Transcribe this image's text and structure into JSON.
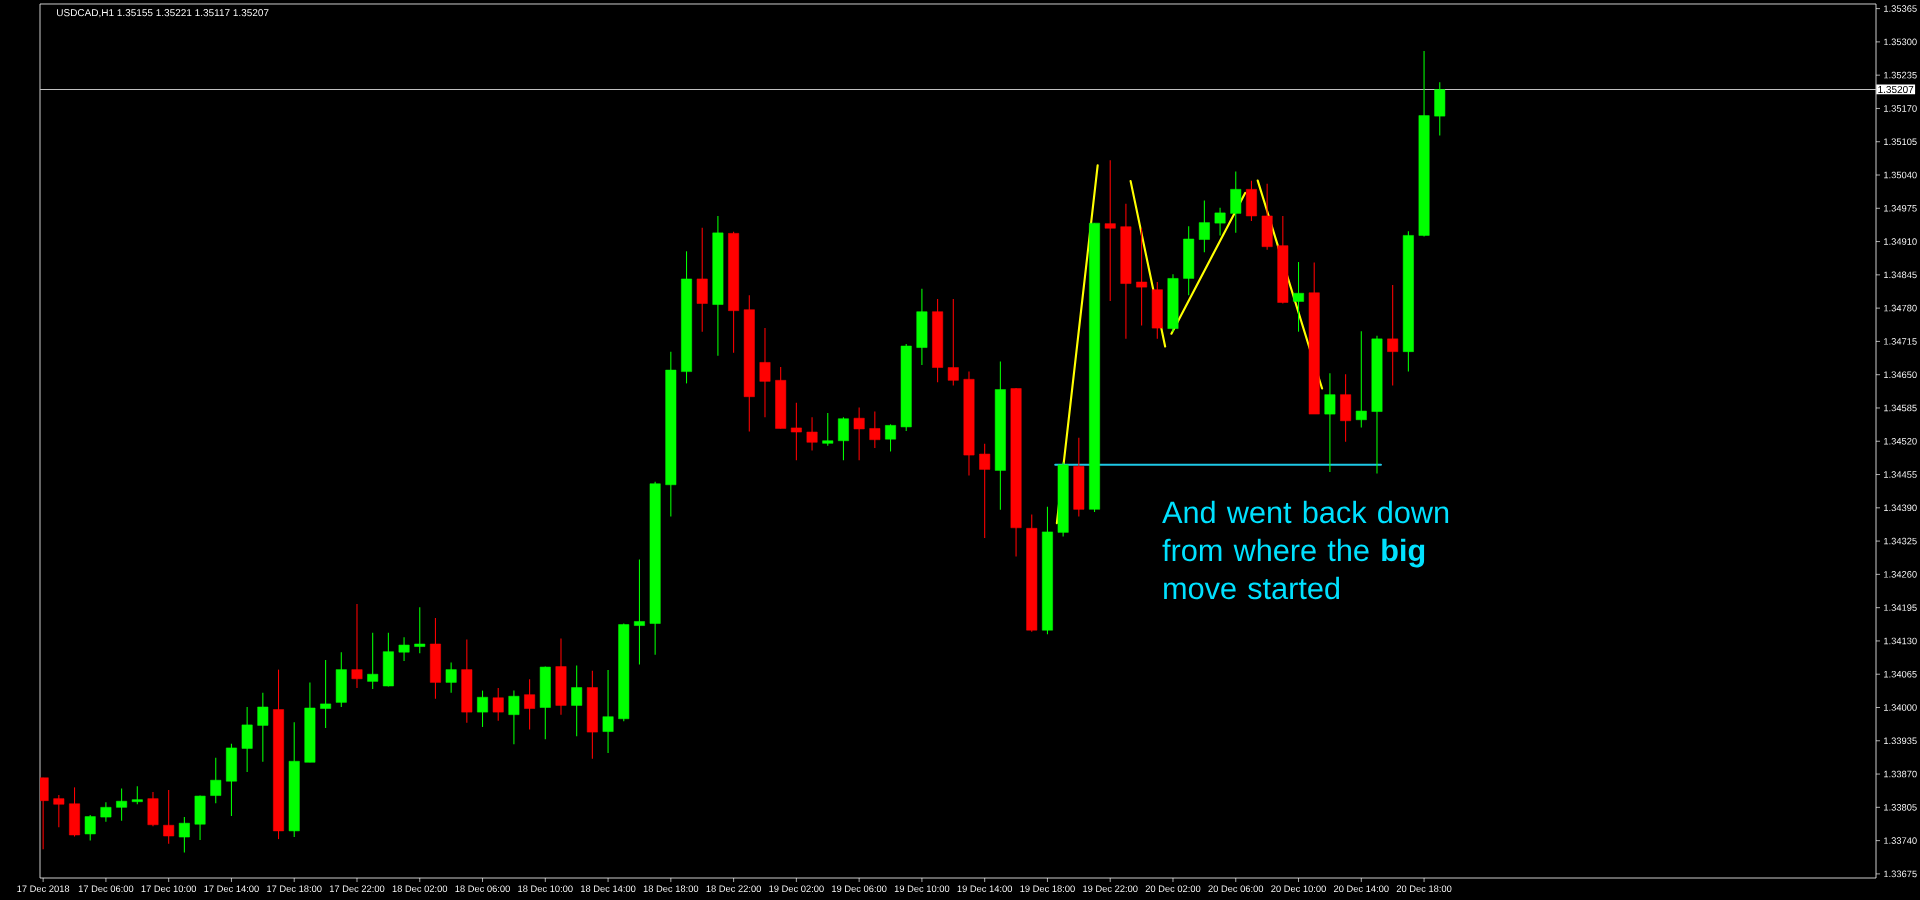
{
  "chart_data": {
    "type": "candlestick",
    "title": "USDCAD,H1 1.35155 1.35221 1.35117 1.35207",
    "annotations": [
      "And went back down from where the **big** move started"
    ],
    "x": [
      "2018-12-17T02:00",
      "2018-12-17T03:00",
      "2018-12-17T04:00",
      "2018-12-17T05:00",
      "2018-12-17T06:00",
      "2018-12-17T07:00",
      "2018-12-17T08:00",
      "2018-12-17T09:00",
      "2018-12-17T10:00",
      "2018-12-17T11:00",
      "2018-12-17T12:00",
      "2018-12-17T13:00",
      "2018-12-17T14:00",
      "2018-12-17T15:00",
      "2018-12-17T16:00",
      "2018-12-17T17:00",
      "2018-12-17T18:00",
      "2018-12-17T19:00",
      "2018-12-17T20:00",
      "2018-12-17T21:00",
      "2018-12-17T22:00",
      "2018-12-17T23:00",
      "2018-12-18T00:00",
      "2018-12-18T01:00",
      "2018-12-18T02:00",
      "2018-12-18T03:00",
      "2018-12-18T04:00",
      "2018-12-18T05:00",
      "2018-12-18T06:00",
      "2018-12-18T07:00",
      "2018-12-18T08:00",
      "2018-12-18T09:00",
      "2018-12-18T10:00",
      "2018-12-18T11:00",
      "2018-12-18T12:00",
      "2018-12-18T13:00",
      "2018-12-18T14:00",
      "2018-12-18T15:00",
      "2018-12-18T16:00",
      "2018-12-18T17:00",
      "2018-12-18T18:00",
      "2018-12-18T19:00",
      "2018-12-18T20:00",
      "2018-12-18T21:00",
      "2018-12-18T22:00",
      "2018-12-18T23:00",
      "2018-12-19T00:00",
      "2018-12-19T01:00",
      "2018-12-19T02:00",
      "2018-12-19T03:00",
      "2018-12-19T04:00",
      "2018-12-19T05:00",
      "2018-12-19T06:00",
      "2018-12-19T07:00",
      "2018-12-19T08:00",
      "2018-12-19T09:00",
      "2018-12-19T10:00",
      "2018-12-19T11:00",
      "2018-12-19T12:00",
      "2018-12-19T13:00",
      "2018-12-19T14:00",
      "2018-12-19T15:00",
      "2018-12-19T16:00",
      "2018-12-19T17:00",
      "2018-12-19T18:00",
      "2018-12-19T19:00",
      "2018-12-19T20:00",
      "2018-12-19T21:00",
      "2018-12-19T22:00",
      "2018-12-19T23:00",
      "2018-12-20T00:00",
      "2018-12-20T01:00",
      "2018-12-20T02:00",
      "2018-12-20T03:00",
      "2018-12-20T04:00",
      "2018-12-20T05:00",
      "2018-12-20T06:00",
      "2018-12-20T07:00",
      "2018-12-20T08:00",
      "2018-12-20T09:00",
      "2018-12-20T10:00",
      "2018-12-20T11:00",
      "2018-12-20T12:00",
      "2018-12-20T13:00",
      "2018-12-20T14:00",
      "2018-12-20T15:00",
      "2018-12-20T16:00",
      "2018-12-20T17:00",
      "2018-12-20T18:00",
      "2018-12-20T19:00"
    ],
    "ohlc": [
      [
        1.33863,
        1.33863,
        1.33723,
        1.33818
      ],
      [
        1.33822,
        1.33829,
        1.33766,
        1.33811
      ],
      [
        1.33812,
        1.33844,
        1.33748,
        1.33751
      ],
      [
        1.33753,
        1.3379,
        1.3374,
        1.33787
      ],
      [
        1.33786,
        1.33815,
        1.33777,
        1.33805
      ],
      [
        1.33805,
        1.33842,
        1.33779,
        1.33817
      ],
      [
        1.33816,
        1.33846,
        1.33811,
        1.3382
      ],
      [
        1.33822,
        1.33835,
        1.33768,
        1.33771
      ],
      [
        1.3377,
        1.33839,
        1.33734,
        1.33749
      ],
      [
        1.33747,
        1.33786,
        1.33717,
        1.33774
      ],
      [
        1.33772,
        1.33828,
        1.33741,
        1.33827
      ],
      [
        1.33828,
        1.33902,
        1.33813,
        1.33858
      ],
      [
        1.33856,
        1.33929,
        1.33788,
        1.33921
      ],
      [
        1.3392,
        1.34001,
        1.33874,
        1.33966
      ],
      [
        1.33965,
        1.34029,
        1.33894,
        1.34001
      ],
      [
        1.33996,
        1.34074,
        1.33743,
        1.33759
      ],
      [
        1.33759,
        1.33971,
        1.33747,
        1.33895
      ],
      [
        1.33893,
        1.34049,
        1.33893,
        1.33999
      ],
      [
        1.33998,
        1.34093,
        1.3396,
        1.34007
      ],
      [
        1.3401,
        1.34108,
        1.34001,
        1.34074
      ],
      [
        1.34074,
        1.34202,
        1.34038,
        1.34056
      ],
      [
        1.34051,
        1.34146,
        1.34036,
        1.34065
      ],
      [
        1.34042,
        1.34146,
        1.34041,
        1.34109
      ],
      [
        1.34108,
        1.34137,
        1.34091,
        1.34122
      ],
      [
        1.34119,
        1.34196,
        1.34106,
        1.34124
      ],
      [
        1.34124,
        1.34175,
        1.34017,
        1.34049
      ],
      [
        1.34049,
        1.34088,
        1.34029,
        1.34074
      ],
      [
        1.34074,
        1.34133,
        1.3397,
        1.33991
      ],
      [
        1.33991,
        1.34033,
        1.33962,
        1.3402
      ],
      [
        1.34019,
        1.34038,
        1.33974,
        1.33991
      ],
      [
        1.33986,
        1.34033,
        1.33928,
        1.34022
      ],
      [
        1.34025,
        1.34055,
        1.33957,
        1.33998
      ],
      [
        1.34,
        1.3408,
        1.33938,
        1.34079
      ],
      [
        1.3408,
        1.34135,
        1.33986,
        1.34004
      ],
      [
        1.34004,
        1.34082,
        1.33944,
        1.34039
      ],
      [
        1.34039,
        1.34072,
        1.339,
        1.33952
      ],
      [
        1.33953,
        1.34073,
        1.33911,
        1.33982
      ],
      [
        1.33978,
        1.34164,
        1.33973,
        1.34162
      ],
      [
        1.3416,
        1.34289,
        1.34084,
        1.34168
      ],
      [
        1.34164,
        1.34441,
        1.34103,
        1.34437
      ],
      [
        1.34435,
        1.34695,
        1.34373,
        1.34659
      ],
      [
        1.34656,
        1.34891,
        1.34633,
        1.34837
      ],
      [
        1.34837,
        1.34937,
        1.34734,
        1.34789
      ],
      [
        1.34787,
        1.3496,
        1.34687,
        1.34927
      ],
      [
        1.34926,
        1.34929,
        1.34693,
        1.34775
      ],
      [
        1.34777,
        1.34805,
        1.34539,
        1.34607
      ],
      [
        1.34674,
        1.34741,
        1.34567,
        1.34637
      ],
      [
        1.34639,
        1.34665,
        1.34545,
        1.34545
      ],
      [
        1.34546,
        1.34595,
        1.34483,
        1.34538
      ],
      [
        1.34538,
        1.34567,
        1.34502,
        1.34518
      ],
      [
        1.34516,
        1.34575,
        1.34511,
        1.34521
      ],
      [
        1.34521,
        1.34567,
        1.34483,
        1.34564
      ],
      [
        1.34565,
        1.34586,
        1.34483,
        1.34544
      ],
      [
        1.34545,
        1.34578,
        1.34507,
        1.34523
      ],
      [
        1.34524,
        1.34553,
        1.345,
        1.34551
      ],
      [
        1.34548,
        1.3471,
        1.3454,
        1.34706
      ],
      [
        1.34703,
        1.34818,
        1.34669,
        1.34773
      ],
      [
        1.34773,
        1.34798,
        1.34635,
        1.34664
      ],
      [
        1.34664,
        1.34798,
        1.34629,
        1.34639
      ],
      [
        1.34641,
        1.34656,
        1.34453,
        1.34493
      ],
      [
        1.34495,
        1.34515,
        1.34331,
        1.34465
      ],
      [
        1.34463,
        1.34676,
        1.34386,
        1.34621
      ],
      [
        1.34623,
        1.34624,
        1.34295,
        1.34351
      ],
      [
        1.3435,
        1.34377,
        1.34148,
        1.34151
      ],
      [
        1.34151,
        1.34392,
        1.34143,
        1.34343
      ],
      [
        1.34342,
        1.34479,
        1.34334,
        1.34474
      ],
      [
        1.34471,
        1.34527,
        1.34373,
        1.34387
      ],
      [
        1.34387,
        1.34946,
        1.34382,
        1.34946
      ],
      [
        1.34945,
        1.35069,
        1.34794,
        1.34936
      ],
      [
        1.34939,
        1.34984,
        1.3472,
        1.34828
      ],
      [
        1.34831,
        1.34936,
        1.34746,
        1.34821
      ],
      [
        1.34816,
        1.34831,
        1.3472,
        1.34741
      ],
      [
        1.3474,
        1.34846,
        1.34734,
        1.34838
      ],
      [
        1.34838,
        1.3494,
        1.34805,
        1.34915
      ],
      [
        1.34914,
        1.3499,
        1.34889,
        1.34947
      ],
      [
        1.34946,
        1.34976,
        1.34922,
        1.34966
      ],
      [
        1.34965,
        1.35047,
        1.34927,
        1.35012
      ],
      [
        1.35012,
        1.35029,
        1.3495,
        1.3496
      ],
      [
        1.3496,
        1.35023,
        1.34894,
        1.349
      ],
      [
        1.34902,
        1.3496,
        1.34789,
        1.34791
      ],
      [
        1.34793,
        1.3487,
        1.34734,
        1.34809
      ],
      [
        1.3481,
        1.34869,
        1.34573,
        1.34573
      ],
      [
        1.34573,
        1.34653,
        1.3446,
        1.34611
      ],
      [
        1.34611,
        1.34651,
        1.34519,
        1.3456
      ],
      [
        1.34562,
        1.34735,
        1.34547,
        1.34579
      ],
      [
        1.34578,
        1.34726,
        1.34457,
        1.3472
      ],
      [
        1.3472,
        1.34825,
        1.34629,
        1.34695
      ],
      [
        1.34695,
        1.3493,
        1.34656,
        1.34922
      ],
      [
        1.34922,
        1.35282,
        1.3492,
        1.35156
      ],
      [
        1.35155,
        1.35221,
        1.35117,
        1.35207
      ]
    ],
    "colors": [
      "#ff0000",
      "#ff0000",
      "#ff0000",
      "#00ff00",
      "#00ff00",
      "#00ff00",
      "#00ff00",
      "#ff0000",
      "#ff0000",
      "#00ff00",
      "#00ff00",
      "#00ff00",
      "#00ff00",
      "#00ff00",
      "#00ff00",
      "#ff0000",
      "#00ff00",
      "#00ff00",
      "#00ff00",
      "#00ff00",
      "#ff0000",
      "#00ff00",
      "#00ff00",
      "#00ff00",
      "#00ff00",
      "#ff0000",
      "#00ff00",
      "#ff0000",
      "#00ff00",
      "#ff0000",
      "#00ff00",
      "#ff0000",
      "#00ff00",
      "#ff0000",
      "#00ff00",
      "#ff0000",
      "#00ff00",
      "#00ff00",
      "#00ff00",
      "#00ff00",
      "#00ff00",
      "#00ff00",
      "#ff0000",
      "#00ff00",
      "#ff0000",
      "#ff0000",
      "#ff0000",
      "#ff0000",
      "#ff0000",
      "#ff0000",
      "#00ff00",
      "#00ff00",
      "#ff0000",
      "#ff0000",
      "#00ff00",
      "#00ff00",
      "#00ff00",
      "#ff0000",
      "#ff0000",
      "#ff0000",
      "#ff0000",
      "#00ff00",
      "#ff0000",
      "#ff0000",
      "#00ff00",
      "#00ff00",
      "#ff0000",
      "#00ff00",
      "#ff0000",
      "#ff0000",
      "#ff0000",
      "#ff0000",
      "#00ff00",
      "#00ff00",
      "#00ff00",
      "#00ff00",
      "#00ff00",
      "#ff0000",
      "#ff0000",
      "#ff0000",
      "#00ff00",
      "#ff0000",
      "#00ff00",
      "#ff0000",
      "#00ff00",
      "#00ff00",
      "#ff0000",
      "#00ff00",
      "#00ff00",
      "#00ff00"
    ],
    "series": [
      {
        "type": "line",
        "color": "#ffff00",
        "x": [
          "2018-12-19T18:36",
          "2018-12-19T21:12"
        ],
        "values": [
          1.3436,
          1.35059
        ]
      },
      {
        "type": "line",
        "color": "#ffff00",
        "x": [
          "2018-12-19T23:18",
          "2018-12-20T01:30"
        ],
        "values": [
          1.35028,
          1.34705
        ]
      },
      {
        "type": "line",
        "color": "#ffff00",
        "x": [
          "2018-12-20T01:54",
          "2018-12-20T06:36"
        ],
        "values": [
          1.3473,
          1.35005
        ]
      },
      {
        "type": "line",
        "color": "#ffff00",
        "x": [
          "2018-12-20T07:24",
          "2018-12-20T11:30"
        ],
        "values": [
          1.35029,
          1.34623
        ]
      },
      {
        "type": "line",
        "color": "#1ec8e6",
        "x": [
          "2018-12-19T18:30",
          "2018-12-20T15:15"
        ],
        "values": [
          1.34474,
          1.34474
        ]
      }
    ],
    "ref_lines": [
      {
        "axis": "y",
        "value": 1.35207,
        "label": "1.35207",
        "color": "#c0c0c0"
      }
    ],
    "xlim": [
      "2018-12-17T01:48",
      "2018-12-21T22:48"
    ],
    "ylim": [
      1.33667,
      1.35374
    ],
    "xticks": [
      {
        "value": "2018-12-17T02:00",
        "label": "17 Dec 2018"
      },
      {
        "value": "2018-12-17T06:00",
        "label": "17 Dec 06:00"
      },
      {
        "value": "2018-12-17T10:00",
        "label": "17 Dec 10:00"
      },
      {
        "value": "2018-12-17T14:00",
        "label": "17 Dec 14:00"
      },
      {
        "value": "2018-12-17T18:00",
        "label": "17 Dec 18:00"
      },
      {
        "value": "2018-12-17T22:00",
        "label": "17 Dec 22:00"
      },
      {
        "value": "2018-12-18T02:00",
        "label": "18 Dec 02:00"
      },
      {
        "value": "2018-12-18T06:00",
        "label": "18 Dec 06:00"
      },
      {
        "value": "2018-12-18T10:00",
        "label": "18 Dec 10:00"
      },
      {
        "value": "2018-12-18T14:00",
        "label": "18 Dec 14:00"
      },
      {
        "value": "2018-12-18T18:00",
        "label": "18 Dec 18:00"
      },
      {
        "value": "2018-12-18T22:00",
        "label": "18 Dec 22:00"
      },
      {
        "value": "2018-12-19T02:00",
        "label": "19 Dec 02:00"
      },
      {
        "value": "2018-12-19T06:00",
        "label": "19 Dec 06:00"
      },
      {
        "value": "2018-12-19T10:00",
        "label": "19 Dec 10:00"
      },
      {
        "value": "2018-12-19T14:00",
        "label": "19 Dec 14:00"
      },
      {
        "value": "2018-12-19T18:00",
        "label": "19 Dec 18:00"
      },
      {
        "value": "2018-12-19T22:00",
        "label": "19 Dec 22:00"
      },
      {
        "value": "2018-12-20T02:00",
        "label": "20 Dec 02:00"
      },
      {
        "value": "2018-12-20T06:00",
        "label": "20 Dec 06:00"
      },
      {
        "value": "2018-12-20T10:00",
        "label": "20 Dec 10:00"
      },
      {
        "value": "2018-12-20T14:00",
        "label": "20 Dec 14:00"
      },
      {
        "value": "2018-12-20T18:00",
        "label": "20 Dec 18:00"
      }
    ],
    "yticks": [
      {
        "value": 1.35365,
        "label": "1.35365"
      },
      {
        "value": 1.353,
        "label": "1.35300"
      },
      {
        "value": 1.35235,
        "label": "1.35235"
      },
      {
        "value": 1.3517,
        "label": "1.35170"
      },
      {
        "value": 1.35105,
        "label": "1.35105"
      },
      {
        "value": 1.3504,
        "label": "1.35040"
      },
      {
        "value": 1.34975,
        "label": "1.34975"
      },
      {
        "value": 1.3491,
        "label": "1.34910"
      },
      {
        "value": 1.34845,
        "label": "1.34845"
      },
      {
        "value": 1.3478,
        "label": "1.34780"
      },
      {
        "value": 1.34715,
        "label": "1.34715"
      },
      {
        "value": 1.3465,
        "label": "1.34650"
      },
      {
        "value": 1.34585,
        "label": "1.34585"
      },
      {
        "value": 1.3452,
        "label": "1.34520"
      },
      {
        "value": 1.34455,
        "label": "1.34455"
      },
      {
        "value": 1.3439,
        "label": "1.34390"
      },
      {
        "value": 1.34325,
        "label": "1.34325"
      },
      {
        "value": 1.3426,
        "label": "1.34260"
      },
      {
        "value": 1.34195,
        "label": "1.34195"
      },
      {
        "value": 1.3413,
        "label": "1.34130"
      },
      {
        "value": 1.34065,
        "label": "1.34065"
      },
      {
        "value": 1.34,
        "label": "1.34000"
      },
      {
        "value": 1.33935,
        "label": "1.33935"
      },
      {
        "value": 1.3387,
        "label": "1.33870"
      },
      {
        "value": 1.33805,
        "label": "1.33805"
      },
      {
        "value": 1.3374,
        "label": "1.33740"
      },
      {
        "value": 1.33675,
        "label": "1.33675"
      }
    ]
  }
}
